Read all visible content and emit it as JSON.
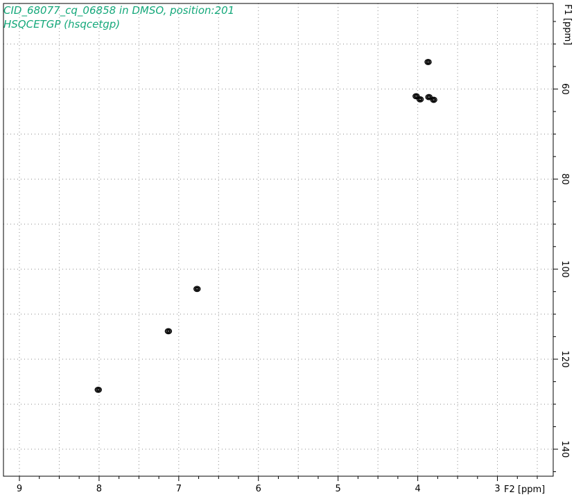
{
  "header": {
    "title_line1": "CID_68077_cq_06858 in DMSO, position:201",
    "title_line2": "HSQCETGP (hsqcetgp)"
  },
  "colors": {
    "title": "#14a87a",
    "contour": "#000000",
    "grid": "#8a8a8a"
  },
  "chart_data": {
    "type": "scatter",
    "title": "CID_68077_cq_06858 in DMSO, position:201",
    "subtitle": "HSQCETGP (hsqcetgp)",
    "xlabel": "F2 [ppm]",
    "ylabel": "F1 [ppm]",
    "xlim": [
      9.2,
      2.3
    ],
    "ylim": [
      41,
      146
    ],
    "x_reversed": true,
    "y_reversed": true,
    "grid": true,
    "x_ticks": [
      9,
      8,
      7,
      6,
      5,
      4,
      3
    ],
    "y_ticks": [
      60,
      80,
      100,
      120,
      140
    ],
    "x_tick_labels": [
      {
        "value": 9,
        "label": "9"
      },
      {
        "value": 8,
        "label": "8"
      },
      {
        "value": 7,
        "label": "7"
      },
      {
        "value": 6,
        "label": "6"
      },
      {
        "value": 5,
        "label": "5"
      },
      {
        "value": 4,
        "label": "4"
      },
      {
        "value": 3,
        "label": "3"
      }
    ],
    "y_tick_labels": [
      {
        "value": 60,
        "label": "60"
      },
      {
        "value": 80,
        "label": "80"
      },
      {
        "value": 100,
        "label": "100"
      },
      {
        "value": 120,
        "label": "120"
      },
      {
        "value": 140,
        "label": "140"
      }
    ],
    "peaks": [
      {
        "x": 3.87,
        "y": 54.0
      },
      {
        "x": 4.02,
        "y": 61.6
      },
      {
        "x": 3.97,
        "y": 62.3
      },
      {
        "x": 3.86,
        "y": 61.8
      },
      {
        "x": 3.8,
        "y": 62.4
      },
      {
        "x": 6.77,
        "y": 104.4
      },
      {
        "x": 7.13,
        "y": 113.8
      },
      {
        "x": 8.01,
        "y": 126.8
      }
    ]
  }
}
